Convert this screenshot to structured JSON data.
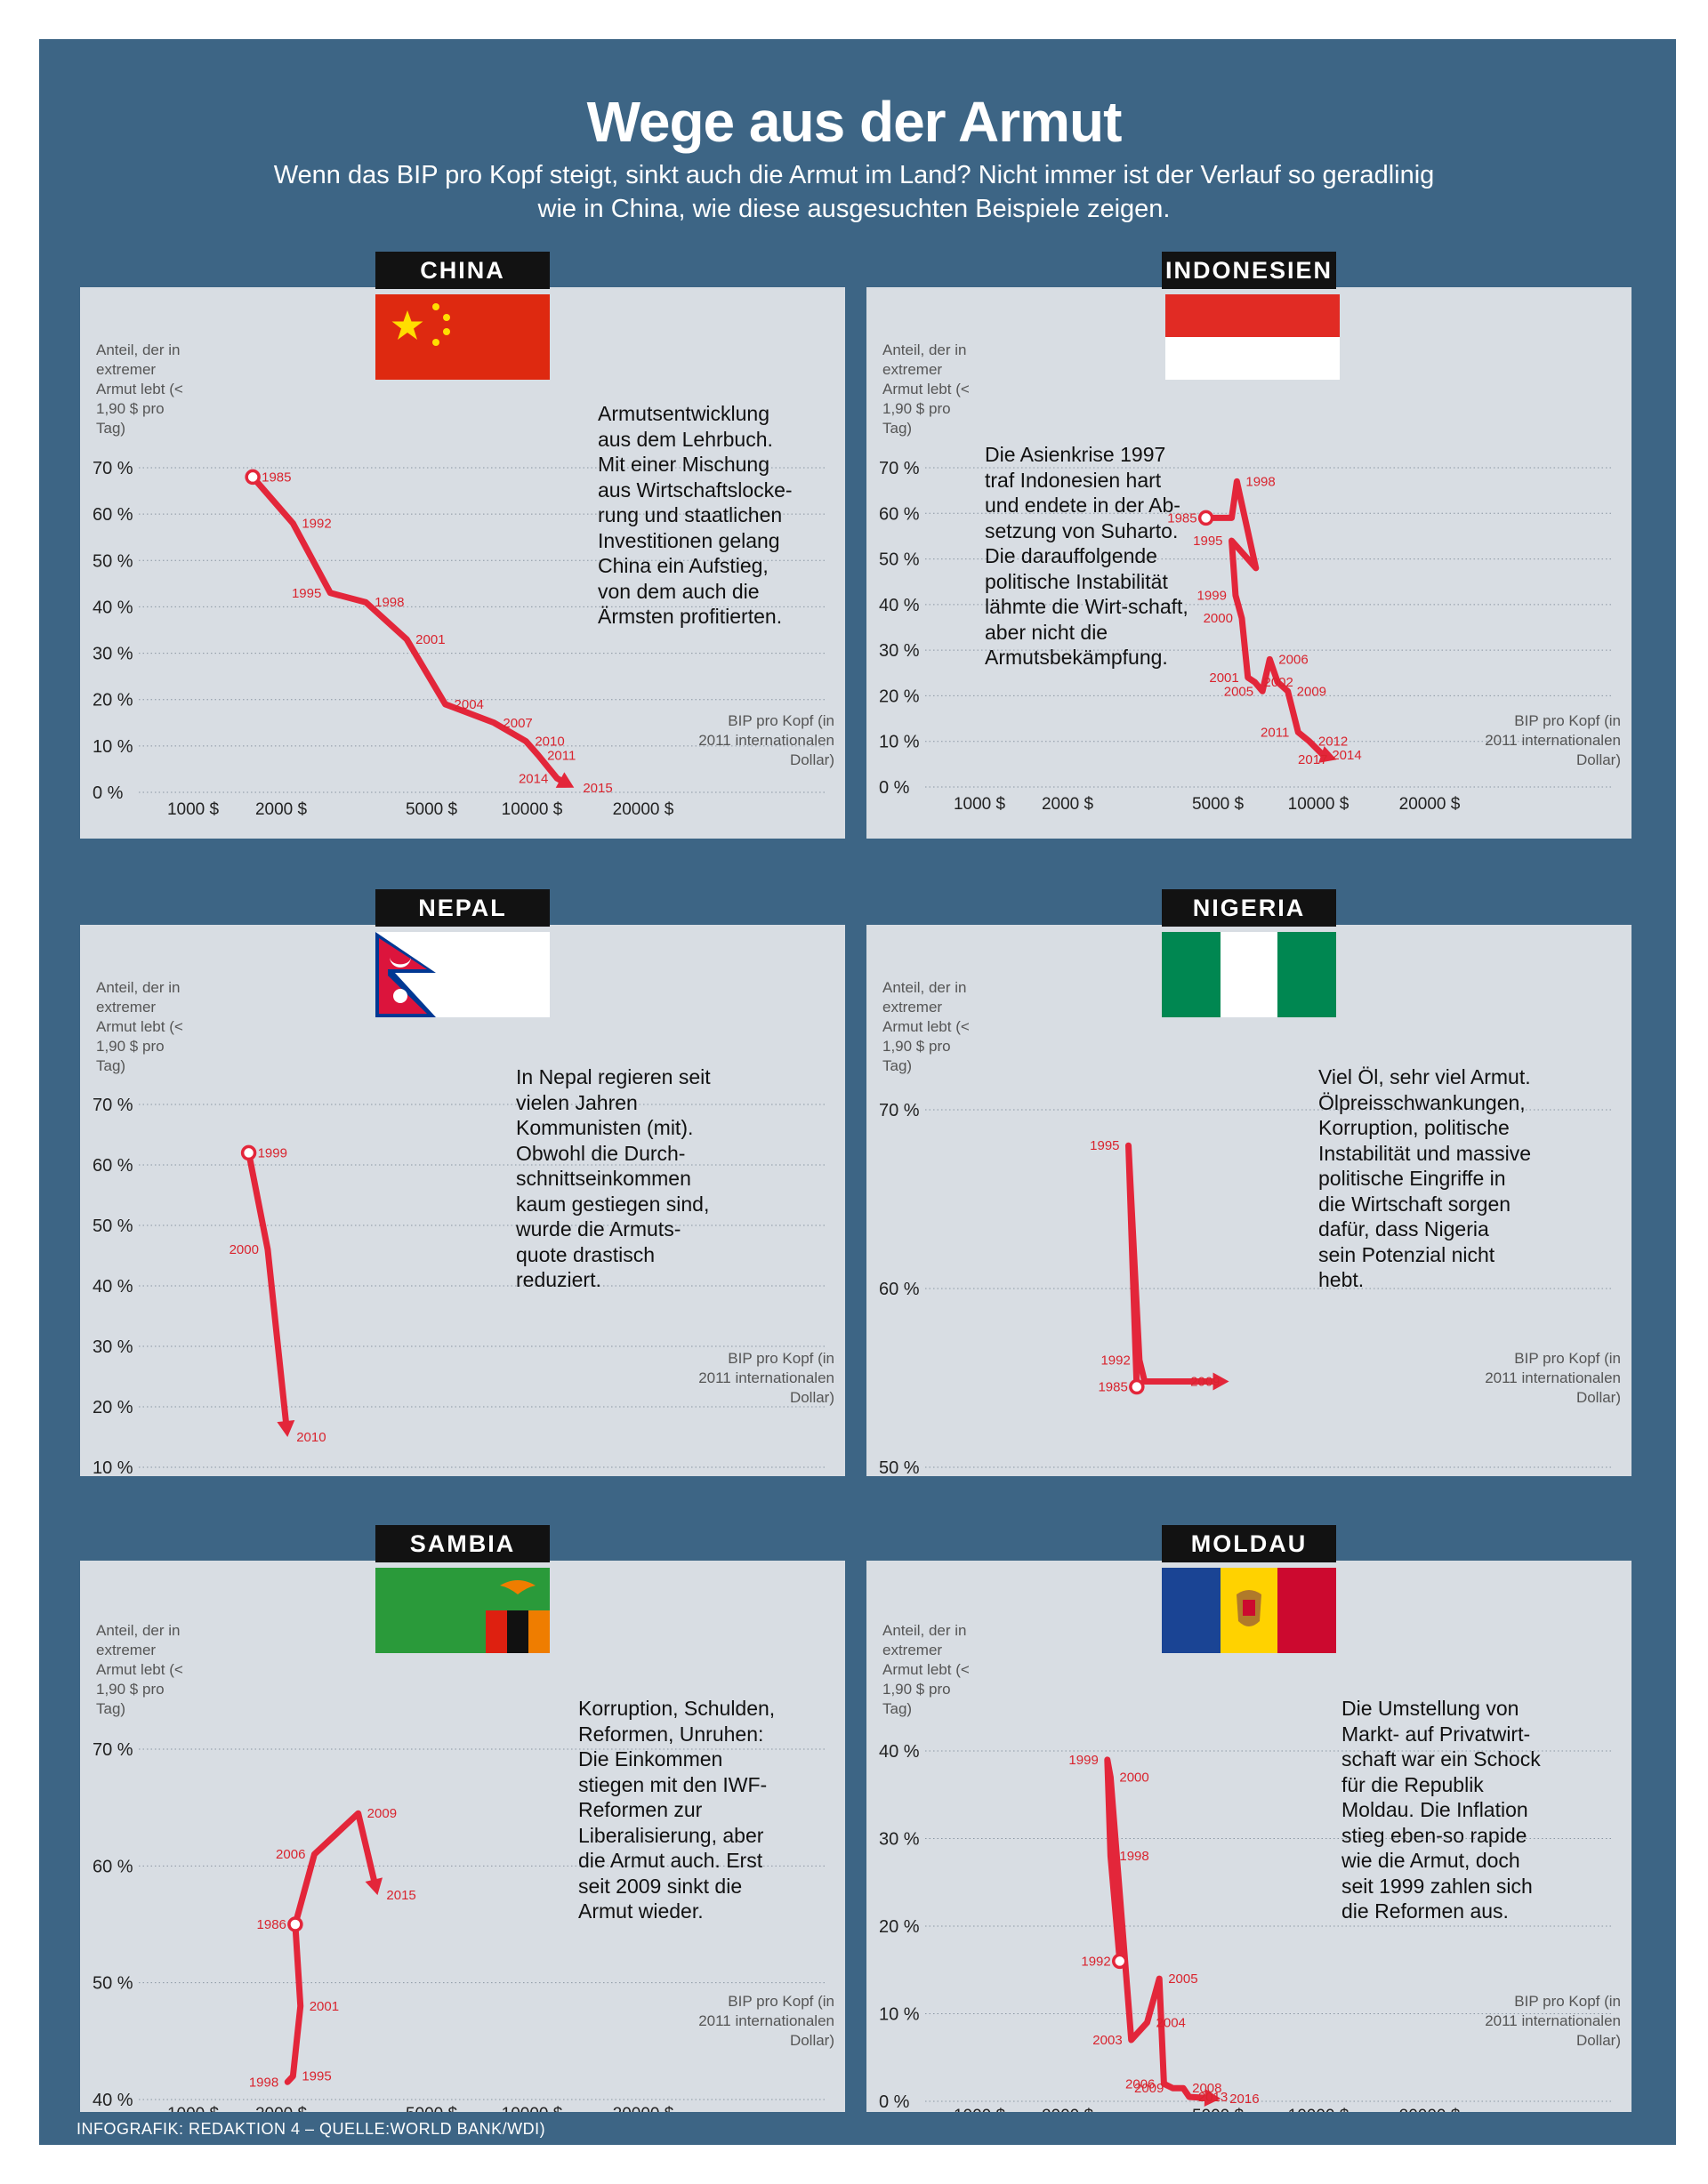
{
  "title": "Wege aus der Armut",
  "subtitle": "Wenn das BIP pro Kopf steigt, sinkt auch die Armut im Land? Nicht immer ist der Verlauf so geradlinig wie in China, wie diese ausgesuchten Beispiele zeigen.",
  "credit": "INFOGRAFIK: REDAKTION 4 – QUELLE:WORLD BANK/WDI)",
  "common": {
    "y_axis_label": "Anteil, der in extremer Armut lebt (< 1,90 $ pro Tag)",
    "x_axis_label": "BIP pro Kopf (in 2011 internationalen Dollar)",
    "x_ticks": [
      "1000 $",
      "2000 $",
      "5000 $",
      "10000 $",
      "20000 $"
    ]
  },
  "colors": {
    "background": "#3d6585",
    "panel": "#d8dde3",
    "line": "#e3263a",
    "label_bg": "#121212"
  },
  "chart_data": [
    {
      "type": "line",
      "country": "CHINA",
      "flag": "flag-china",
      "description": "Armutsentwicklung aus dem Lehrbuch. Mit einer Mischung aus Wirtschaftslocke-rung und staatlichen Investitionen gelang China ein Aufstieg, von dem auch die Ärmsten profitierten.",
      "xlabel": "BIP pro Kopf (in 2011 internationalen Dollar)",
      "ylabel": "Anteil, der in extremer Armut lebt (< 1,90 $ pro Tag)",
      "y_ticks": [
        "70 %",
        "60 %",
        "50 %",
        "40 %",
        "30 %",
        "20 %",
        "10 %",
        "0 %"
      ],
      "ylim": [
        0,
        70
      ],
      "xlim": [
        700,
        22000
      ],
      "x_scale": "log",
      "series": [
        {
          "name": "China",
          "points": [
            {
              "year": "1985",
              "gdp": 1600,
              "poverty": 68
            },
            {
              "year": "1992",
              "gdp": 2150,
              "poverty": 58
            },
            {
              "year": "1995",
              "gdp": 2700,
              "poverty": 43
            },
            {
              "year": "1998",
              "gdp": 3350,
              "poverty": 41
            },
            {
              "year": "2001",
              "gdp": 4300,
              "poverty": 33
            },
            {
              "year": "2004",
              "gdp": 5500,
              "poverty": 19
            },
            {
              "year": "2007",
              "gdp": 7700,
              "poverty": 15
            },
            {
              "year": "2010",
              "gdp": 9600,
              "poverty": 11
            },
            {
              "year": "2011",
              "gdp": 10400,
              "poverty": 8
            },
            {
              "year": "2014",
              "gdp": 11700,
              "poverty": 3
            },
            {
              "year": "2015",
              "gdp": 13000,
              "poverty": 1
            }
          ]
        }
      ]
    },
    {
      "type": "line",
      "country": "INDONESIEN",
      "flag": "flag-indonesia",
      "description": "Die Asienkrise 1997 traf Indonesien hart und endete in der Ab-setzung von Suharto. Die darauffolgende politische Instabilität lähmte die Wirt-schaft, aber nicht die Armutsbekämpfung.",
      "xlabel": "BIP pro Kopf (in 2011 internationalen Dollar)",
      "ylabel": "Anteil, der in extremer Armut lebt (< 1,90 $ pro Tag)",
      "y_ticks": [
        "70 %",
        "60 %",
        "50 %",
        "40 %",
        "30 %",
        "20 %",
        "10 %",
        "0 %"
      ],
      "ylim": [
        0,
        70
      ],
      "xlim": [
        700,
        22000
      ],
      "x_scale": "log",
      "series": [
        {
          "name": "Indonesien",
          "points": [
            {
              "year": "1985",
              "gdp": 4650,
              "poverty": 59
            },
            {
              "year": "",
              "gdp": 5500,
              "poverty": 59
            },
            {
              "year": "1998",
              "gdp": 5700,
              "poverty": 67
            },
            {
              "year": "",
              "gdp": 6500,
              "poverty": 48
            },
            {
              "year": "1995",
              "gdp": 5500,
              "poverty": 54
            },
            {
              "year": "1999",
              "gdp": 5650,
              "poverty": 42
            },
            {
              "year": "2000",
              "gdp": 5900,
              "poverty": 37
            },
            {
              "year": "2001",
              "gdp": 6150,
              "poverty": 24
            },
            {
              "year": "2002",
              "gdp": 6450,
              "poverty": 23
            },
            {
              "year": "2005",
              "gdp": 6800,
              "poverty": 21
            },
            {
              "year": "2006",
              "gdp": 7150,
              "poverty": 28
            },
            {
              "year": "",
              "gdp": 7550,
              "poverty": 23
            },
            {
              "year": "2009",
              "gdp": 8100,
              "poverty": 21
            },
            {
              "year": "2011",
              "gdp": 8700,
              "poverty": 12
            },
            {
              "year": "2012",
              "gdp": 9400,
              "poverty": 10
            },
            {
              "year": "2014",
              "gdp": 10300,
              "poverty": 7
            },
            {
              "year": "2017",
              "gdp": 11200,
              "poverty": 6
            }
          ]
        }
      ]
    },
    {
      "type": "line",
      "country": "NEPAL",
      "flag": "flag-nepal",
      "description": "In Nepal regieren seit vielen Jahren Kommunisten (mit). Obwohl die Durch-schnittseinkommen kaum gestiegen sind, wurde die Armuts-quote drastisch reduziert.",
      "xlabel": "BIP pro Kopf (in 2011 internationalen Dollar)",
      "ylabel": "Anteil, der in extremer Armut lebt (< 1,90 $ pro Tag)",
      "y_ticks": [
        "70 %",
        "60 %",
        "50 %",
        "40 %",
        "30 %",
        "20 %",
        "10 %"
      ],
      "ylim": [
        10,
        70
      ],
      "xlim": [
        700,
        22000
      ],
      "x_scale": "log",
      "series": [
        {
          "name": "Nepal",
          "points": [
            {
              "year": "1999",
              "gdp": 1550,
              "poverty": 62
            },
            {
              "year": "2000",
              "gdp": 1800,
              "poverty": 46
            },
            {
              "year": "2010",
              "gdp": 2080,
              "poverty": 15
            }
          ]
        }
      ]
    },
    {
      "type": "line",
      "country": "NIGERIA",
      "flag": "flag-nigeria",
      "description": "Viel Öl, sehr viel Armut. Ölpreisschwankungen, Korruption, politische Instabilität und massive politische Eingriffe in die Wirtschaft sorgen dafür, dass Nigeria sein Potenzial nicht hebt.",
      "xlabel": "BIP pro Kopf (in 2011 internationalen Dollar)",
      "ylabel": "Anteil, der in extremer Armut lebt (< 1,90 $ pro Tag)",
      "y_ticks": [
        "70 %",
        "60 %",
        "50 %"
      ],
      "ylim": [
        50,
        70
      ],
      "xlim": [
        700,
        22000
      ],
      "x_scale": "log",
      "series": [
        {
          "name": "Nigeria",
          "points": [
            {
              "year": "1985",
              "gdp": 3050,
              "poverty": 54.5
            },
            {
              "year": "1995",
              "gdp": 2900,
              "poverty": 68
            },
            {
              "year": "1992",
              "gdp": 3100,
              "poverty": 56
            },
            {
              "year": "",
              "gdp": 3200,
              "poverty": 54.8
            },
            {
              "year": "2009",
              "gdp": 5400,
              "poverty": 54.8
            }
          ]
        }
      ]
    },
    {
      "type": "line",
      "country": "SAMBIA",
      "flag": "flag-zambia",
      "description": "Korruption, Schulden, Reformen, Unruhen: Die Einkommen stiegen mit den IWF-Reformen zur Liberalisierung, aber die Armut auch. Erst seit 2009 sinkt die Armut wieder.",
      "xlabel": "BIP pro Kopf (in 2011 internationalen Dollar)",
      "ylabel": "Anteil, der in extremer Armut lebt (< 1,90 $ pro Tag)",
      "y_ticks": [
        "70 %",
        "60 %",
        "50 %",
        "40 %"
      ],
      "ylim": [
        40,
        70
      ],
      "xlim": [
        700,
        22000
      ],
      "x_scale": "log",
      "series": [
        {
          "name": "Sambia",
          "points": [
            {
              "year": "1998",
              "gdp": 2080,
              "poverty": 41.5
            },
            {
              "year": "1995",
              "gdp": 2150,
              "poverty": 42
            },
            {
              "year": "2001",
              "gdp": 2250,
              "poverty": 48
            },
            {
              "year": "1986",
              "gdp": 2180,
              "poverty": 55
            },
            {
              "year": "2006",
              "gdp": 2450,
              "poverty": 61
            },
            {
              "year": "2009",
              "gdp": 3200,
              "poverty": 64.5
            },
            {
              "year": "2015",
              "gdp": 3600,
              "poverty": 57.5
            }
          ]
        }
      ]
    },
    {
      "type": "line",
      "country": "MOLDAU",
      "flag": "flag-moldova",
      "description": "Die Umstellung von Markt- auf Privatwirt-schaft war ein Schock für die Republik Moldau. Die Inflation stieg eben-so rapide wie die Armut, doch seit 1999 zahlen sich die Reformen aus.",
      "xlabel": "BIP pro Kopf (in 2011 internationalen Dollar)",
      "ylabel": "Anteil, der in extremer Armut lebt (< 1,90 $ pro Tag)",
      "y_ticks": [
        "40 %",
        "30 %",
        "20 %",
        "10 %",
        "0 %"
      ],
      "ylim": [
        0,
        40
      ],
      "xlim": [
        700,
        22000
      ],
      "x_scale": "log",
      "series": [
        {
          "name": "Moldau",
          "points": [
            {
              "year": "1992",
              "gdp": 2750,
              "poverty": 16
            },
            {
              "year": "1998",
              "gdp": 2600,
              "poverty": 28
            },
            {
              "year": "1999",
              "gdp": 2550,
              "poverty": 39
            },
            {
              "year": "2000",
              "gdp": 2600,
              "poverty": 37
            },
            {
              "year": "2003",
              "gdp": 2950,
              "poverty": 7
            },
            {
              "year": "2004",
              "gdp": 3250,
              "poverty": 9
            },
            {
              "year": "2005",
              "gdp": 3500,
              "poverty": 14
            },
            {
              "year": "2006",
              "gdp": 3600,
              "poverty": 2
            },
            {
              "year": "2009",
              "gdp": 3800,
              "poverty": 1.5
            },
            {
              "year": "2008",
              "gdp": 4050,
              "poverty": 1.5
            },
            {
              "year": "2013",
              "gdp": 4200,
              "poverty": 0.5
            },
            {
              "year": "2016",
              "gdp": 5100,
              "poverty": 0.3
            }
          ]
        }
      ]
    }
  ]
}
